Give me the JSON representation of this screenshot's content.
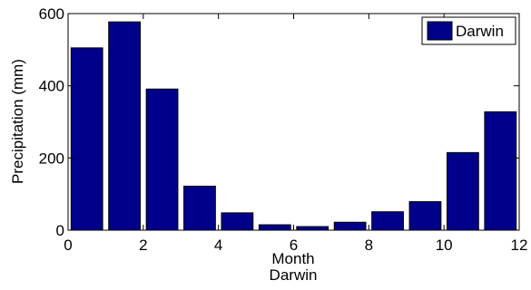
{
  "chart_data": {
    "type": "bar",
    "x": [
      0.5,
      1.5,
      2.5,
      3.5,
      4.5,
      5.5,
      6.5,
      7.5,
      8.5,
      9.5,
      10.5,
      11.5
    ],
    "series": [
      {
        "name": "Darwin",
        "values": [
          505,
          577,
          391,
          122,
          48,
          15,
          10,
          22,
          51,
          79,
          215,
          328
        ],
        "color": "#00008b"
      }
    ],
    "xlabel": "Month",
    "ylabel": "Precipitation (mm)",
    "subtitle": "Darwin",
    "xlim": [
      0,
      12
    ],
    "ylim": [
      0,
      600
    ],
    "xticks": [
      0,
      2,
      4,
      6,
      8,
      10,
      12
    ],
    "yticks": [
      0,
      200,
      400,
      600
    ],
    "legend_position": "top-right",
    "grid": false
  }
}
